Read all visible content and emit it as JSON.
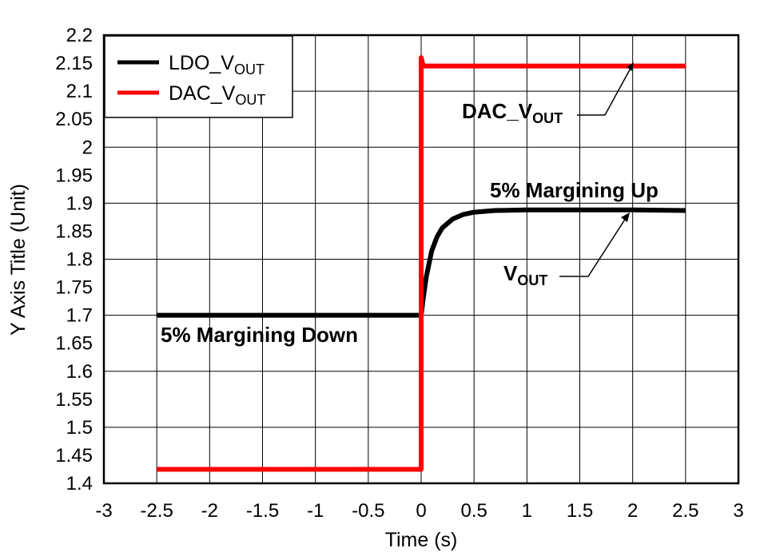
{
  "chart_data": {
    "type": "line",
    "title": "",
    "xlabel": "Time (s)",
    "ylabel": "Y Axis Title (Unit)",
    "xlim": [
      -3,
      3
    ],
    "ylim": [
      1.4,
      2.2
    ],
    "grid": true,
    "x_ticks": [
      "-3",
      "-2.5",
      "-2",
      "-1.5",
      "-1",
      "-0.5",
      "0",
      "0.5",
      "1",
      "1.5",
      "2",
      "2.5",
      "3"
    ],
    "y_ticks": [
      "1.4",
      "1.45",
      "1.5",
      "1.55",
      "1.6",
      "1.65",
      "1.7",
      "1.75",
      "1.8",
      "1.85",
      "1.9",
      "1.95",
      "2",
      "2.05",
      "2.1",
      "2.15",
      "2.2"
    ],
    "legend_position": "top-left",
    "series": [
      {
        "name": "LDO_VOUT",
        "label_main": "LDO_V",
        "label_sub": "OUT",
        "color": "#000000",
        "x": [
          -2.5,
          0,
          0.02,
          0.05,
          0.1,
          0.15,
          0.2,
          0.3,
          0.4,
          0.5,
          0.7,
          1.0,
          1.5,
          2.0,
          2.5
        ],
        "y": [
          1.7,
          1.7,
          1.73,
          1.77,
          1.815,
          1.84,
          1.856,
          1.872,
          1.88,
          1.884,
          1.887,
          1.888,
          1.888,
          1.888,
          1.887
        ]
      },
      {
        "name": "DAC_VOUT",
        "label_main": "DAC_V",
        "label_sub": "OUT",
        "color": "#ff0000",
        "x": [
          -2.5,
          0,
          0,
          0.02,
          2.5
        ],
        "y": [
          1.425,
          1.425,
          2.16,
          2.145,
          2.145
        ]
      }
    ],
    "annotations": [
      {
        "id": "dac-label",
        "main": "DAC_V",
        "sub": "OUT",
        "points_to": [
          1.95,
          2.145
        ]
      },
      {
        "id": "vout-label",
        "main": "V",
        "sub": "OUT",
        "points_to": [
          1.95,
          1.888
        ]
      },
      {
        "id": "margin-up",
        "text": "5% Margining Up"
      },
      {
        "id": "margin-down",
        "text": "5% Margining Down"
      }
    ]
  }
}
